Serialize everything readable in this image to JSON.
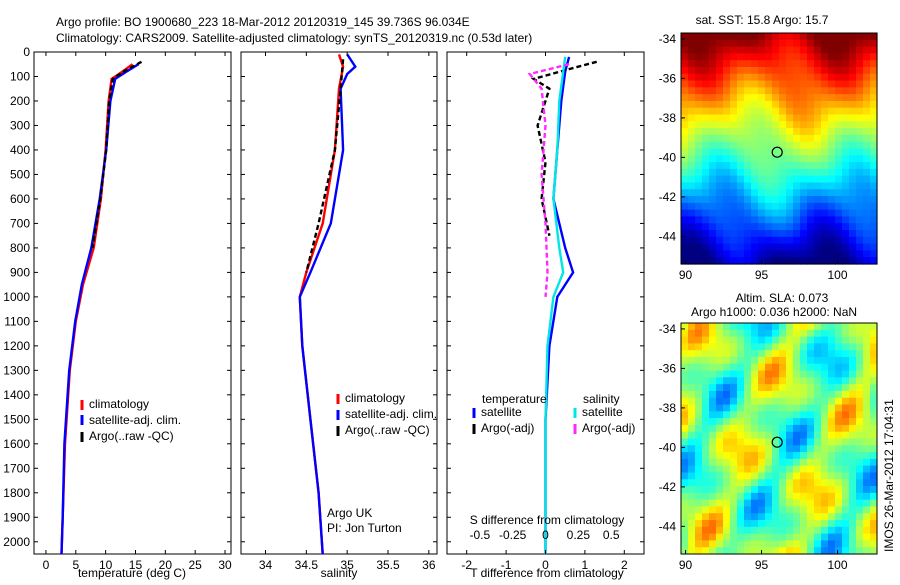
{
  "header": {
    "title_line1": "Argo profile: BO 1900680_223 18-Mar-2012 20120319_145 39.736S 96.034E",
    "title_line2": "Climatology: CARS2009. Satellite-adjusted climatology: synTS_20120319.nc (0.53d later)"
  },
  "colors": {
    "climatology": "#ff0000",
    "satellite": "#0000ff",
    "argo": "#000000",
    "s_satellite": "#00e5e5",
    "s_argo": "#ff2aff"
  },
  "chart_data": [
    {
      "id": "temperature",
      "type": "line",
      "xlabel": "temperature (deg C)",
      "ylabel": "",
      "xlim": [
        -2,
        31
      ],
      "ylim": [
        2050,
        0
      ],
      "xticks": [
        0,
        5,
        10,
        15,
        20,
        25,
        30
      ],
      "yticks": [
        0,
        100,
        200,
        300,
        400,
        500,
        600,
        700,
        800,
        900,
        1000,
        1100,
        1200,
        1300,
        1400,
        1500,
        1600,
        1700,
        1800,
        1900,
        2000
      ],
      "legend": [
        "climatology",
        "satellite-adj. clim.",
        "Argo(..raw -QC)"
      ],
      "legend_position": "lower-right",
      "series": [
        {
          "name": "climatology",
          "color": "#ff0000",
          "dash": "",
          "points": [
            [
              14.5,
              50
            ],
            [
              12.8,
              80
            ],
            [
              11.0,
              110
            ],
            [
              10.5,
              200
            ],
            [
              10.0,
              400
            ],
            [
              9.2,
              600
            ],
            [
              8.0,
              800
            ],
            [
              6.2,
              950
            ],
            [
              5.0,
              1100
            ],
            [
              4.0,
              1300
            ],
            [
              3.2,
              1600
            ],
            [
              2.8,
              1900
            ],
            [
              2.6,
              2050
            ]
          ]
        },
        {
          "name": "satellite-adj. clim.",
          "color": "#0000ff",
          "dash": "",
          "points": [
            [
              15.5,
              50
            ],
            [
              13.5,
              80
            ],
            [
              11.6,
              110
            ],
            [
              10.8,
              200
            ],
            [
              10.1,
              400
            ],
            [
              9.0,
              600
            ],
            [
              7.6,
              800
            ],
            [
              6.0,
              950
            ],
            [
              4.9,
              1100
            ],
            [
              3.9,
              1300
            ],
            [
              3.1,
              1600
            ],
            [
              2.8,
              1900
            ],
            [
              2.6,
              2050
            ]
          ]
        },
        {
          "name": "Argo(..raw -QC)",
          "color": "#000000",
          "dash": "5,3",
          "points": [
            [
              16.0,
              40
            ],
            [
              13.0,
              80
            ],
            [
              11.2,
              110
            ],
            [
              10.6,
              200
            ],
            [
              10.1,
              400
            ],
            [
              9.1,
              600
            ],
            [
              7.8,
              800
            ]
          ]
        }
      ]
    },
    {
      "id": "salinity",
      "type": "line",
      "xlabel": "salinity",
      "ylabel": "",
      "xlim": [
        33.7,
        36.1
      ],
      "ylim": [
        2050,
        0
      ],
      "xticks": [
        34,
        34.5,
        35,
        35.5,
        36
      ],
      "legend": [
        "climatology",
        "satellite-adj. clim.",
        "Argo(..raw -QC)"
      ],
      "legend_position": "lower-right",
      "annotations": [
        "Argo UK",
        "PI: Jon Turton"
      ],
      "series": [
        {
          "name": "climatology",
          "color": "#ff0000",
          "dash": "",
          "points": [
            [
              34.9,
              10
            ],
            [
              34.95,
              60
            ],
            [
              34.9,
              150
            ],
            [
              34.85,
              400
            ],
            [
              34.7,
              700
            ],
            [
              34.5,
              900
            ],
            [
              34.42,
              1000
            ],
            [
              34.45,
              1200
            ],
            [
              34.55,
              1500
            ],
            [
              34.65,
              1800
            ],
            [
              34.7,
              2050
            ]
          ]
        },
        {
          "name": "satellite-adj. clim.",
          "color": "#0000ff",
          "dash": "",
          "points": [
            [
              35.0,
              10
            ],
            [
              35.1,
              60
            ],
            [
              35.0,
              90
            ],
            [
              34.92,
              150
            ],
            [
              34.95,
              400
            ],
            [
              34.8,
              700
            ],
            [
              34.55,
              900
            ],
            [
              34.42,
              1000
            ],
            [
              34.45,
              1200
            ],
            [
              34.55,
              1500
            ],
            [
              34.65,
              1800
            ],
            [
              34.7,
              2050
            ]
          ]
        },
        {
          "name": "Argo(..raw -QC)",
          "color": "#000000",
          "dash": "5,3",
          "points": [
            [
              34.95,
              30
            ],
            [
              34.92,
              150
            ],
            [
              34.85,
              400
            ],
            [
              34.65,
              700
            ],
            [
              34.5,
              900
            ]
          ]
        }
      ]
    },
    {
      "id": "differences",
      "type": "line",
      "xlabel": "T difference from climatology",
      "x2label": "S difference from climatology",
      "xlim": [
        -2.5,
        2.5
      ],
      "xticks": [
        -2,
        -1,
        0,
        1,
        2
      ],
      "x2ticks": [
        -0.5,
        -0.25,
        0,
        0.25,
        0.5
      ],
      "ylim": [
        2050,
        0
      ],
      "legend_headers": [
        "temperature",
        "salinity"
      ],
      "legend": [
        "satellite",
        "Argo(-adj)",
        "satellite",
        "Argo(-adj)"
      ],
      "legend_position": "lower-center",
      "series": [
        {
          "name": "temperature satellite",
          "color": "#0000ff",
          "dash": "",
          "points": [
            [
              0.6,
              20
            ],
            [
              0.5,
              80
            ],
            [
              0.4,
              200
            ],
            [
              0.3,
              400
            ],
            [
              0.2,
              600
            ],
            [
              0.5,
              800
            ],
            [
              0.7,
              900
            ],
            [
              0.3,
              1000
            ],
            [
              0.1,
              1200
            ],
            [
              0,
              1500
            ],
            [
              0,
              2050
            ]
          ]
        },
        {
          "name": "temperature Argo(-adj)",
          "color": "#000000",
          "dash": "5,3",
          "points": [
            [
              1.3,
              40
            ],
            [
              0.6,
              70
            ],
            [
              -0.3,
              110
            ],
            [
              0.1,
              150
            ],
            [
              -0.2,
              300
            ],
            [
              0,
              450
            ],
            [
              -0.1,
              600
            ],
            [
              0.1,
              750
            ]
          ]
        },
        {
          "name": "salinity satellite",
          "color": "#00e5e5",
          "dash": "",
          "points": [
            [
              0.5,
              20
            ],
            [
              0.45,
              80
            ],
            [
              0.35,
              200
            ],
            [
              0.3,
              400
            ],
            [
              0.2,
              600
            ],
            [
              0.35,
              800
            ],
            [
              0.45,
              900
            ],
            [
              0.2,
              1000
            ],
            [
              0.05,
              1200
            ],
            [
              0,
              1500
            ],
            [
              0,
              2050
            ]
          ]
        },
        {
          "name": "salinity Argo(-adj)",
          "color": "#ff2aff",
          "dash": "5,3",
          "points": [
            [
              0.6,
              50
            ],
            [
              -0.4,
              90
            ],
            [
              -0.1,
              150
            ],
            [
              0,
              300
            ],
            [
              -0.1,
              500
            ],
            [
              0,
              700
            ],
            [
              0.05,
              900
            ],
            [
              0,
              1000
            ]
          ]
        }
      ]
    }
  ],
  "maps": [
    {
      "id": "sst-map",
      "title": "sat. SST: 15.8 Argo: 15.7",
      "xticks": [
        90,
        95,
        100
      ],
      "yticks": [
        -34,
        -36,
        -38,
        -40,
        -42,
        -44
      ],
      "xlim": [
        89.7,
        102.6
      ],
      "ylim": [
        -45.4,
        -33.7
      ],
      "marker": [
        96.034,
        -39.736
      ]
    },
    {
      "id": "sla-map",
      "title_line1": "Altim. SLA: 0.073",
      "title_line2": "Argo h1000: 0.036 h2000: NaN",
      "xticks": [
        90,
        95,
        100
      ],
      "yticks": [
        -34,
        -36,
        -38,
        -40,
        -42,
        -44
      ],
      "xlim": [
        89.7,
        102.6
      ],
      "ylim": [
        -45.4,
        -33.7
      ],
      "marker": [
        96.034,
        -39.736
      ]
    }
  ],
  "footer": {
    "stamp": "IMOS 26-Mar-2012 17:04:31"
  }
}
